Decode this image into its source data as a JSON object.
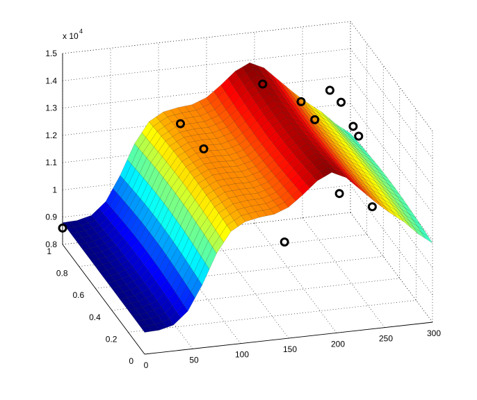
{
  "chart_data": {
    "type": "surface",
    "title": "",
    "xlabel": "",
    "ylabel": "",
    "zlabel": "",
    "z_exponent_label": "x 10",
    "z_exponent_power": "4",
    "xlim": [
      0,
      300
    ],
    "ylim": [
      0,
      1
    ],
    "zlim": [
      8000,
      15000
    ],
    "x_ticks": [
      0,
      50,
      100,
      150,
      200,
      250,
      300
    ],
    "x_tick_labels": [
      "0",
      "50",
      "100",
      "150",
      "200",
      "250",
      "300"
    ],
    "y_ticks": [
      0,
      0.2,
      0.4,
      0.6,
      0.8,
      1
    ],
    "y_tick_labels": [
      "0",
      "0.2",
      "0.4",
      "0.6",
      "0.8",
      "1"
    ],
    "z_ticks": [
      8000,
      9000,
      10000,
      11000,
      12000,
      13000,
      14000,
      15000
    ],
    "z_tick_labels": [
      "0.8",
      "0.9",
      "1",
      "1.1",
      "1.2",
      "1.3",
      "1.4",
      "1.5"
    ],
    "grid": true,
    "colormap": "jet",
    "surface_profile": {
      "x": [
        0,
        15,
        30,
        45,
        60,
        75,
        90,
        105,
        120,
        135,
        150,
        165,
        180,
        195,
        210,
        225,
        240,
        255,
        270,
        285,
        300
      ],
      "z": [
        8800,
        8820,
        8950,
        9400,
        10300,
        11400,
        12150,
        12450,
        12550,
        12600,
        12800,
        13200,
        13650,
        13900,
        13650,
        13150,
        12650,
        12200,
        11800,
        11300,
        10900
      ]
    },
    "markers": [
      {
        "x": 0,
        "y": 1,
        "z": 8600
      },
      {
        "x": 110,
        "y": 0.85,
        "z": 12600
      },
      {
        "x": 130,
        "y": 0.8,
        "z": 11800
      },
      {
        "x": 200,
        "y": 0.9,
        "z": 13500
      },
      {
        "x": 180,
        "y": 0.4,
        "z": 9800
      },
      {
        "x": 240,
        "y": 0.9,
        "z": 12700
      },
      {
        "x": 250,
        "y": 0.85,
        "z": 12200
      },
      {
        "x": 270,
        "y": 0.9,
        "z": 13000
      },
      {
        "x": 280,
        "y": 0.88,
        "z": 12600
      },
      {
        "x": 290,
        "y": 0.85,
        "z": 11800
      },
      {
        "x": 300,
        "y": 0.9,
        "z": 11200
      },
      {
        "x": 250,
        "y": 0.55,
        "z": 10700
      },
      {
        "x": 280,
        "y": 0.5,
        "z": 10300
      }
    ]
  }
}
